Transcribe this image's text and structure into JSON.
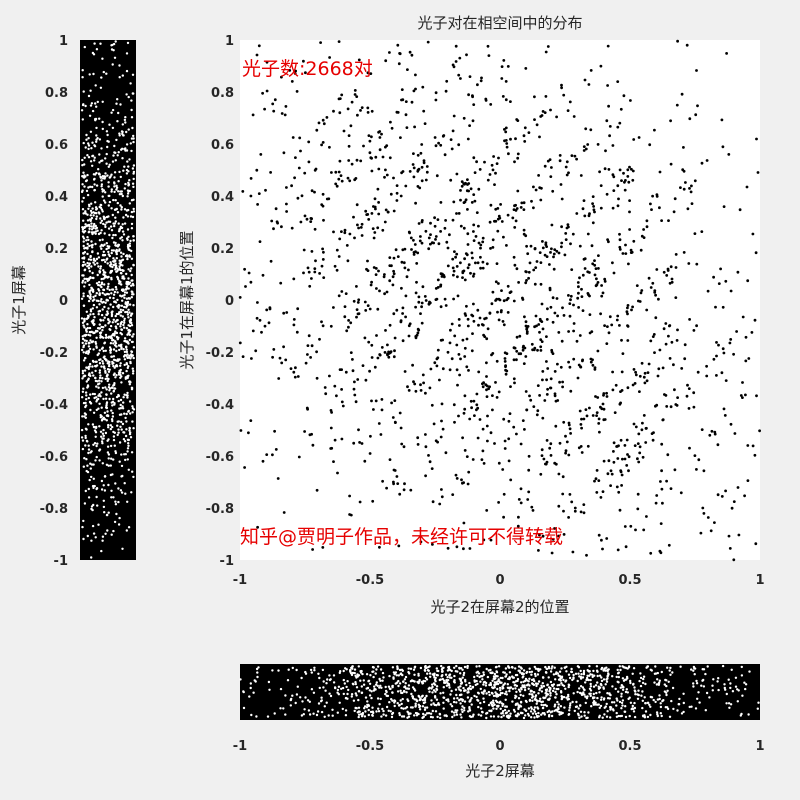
{
  "chart_data": [
    {
      "type": "scatter",
      "title": "光子对在相空间中的分布",
      "xlabel": "光子2在屏幕2的位置",
      "ylabel": "光子1在屏幕1的位置",
      "xlim": [
        -1,
        1
      ],
      "ylim": [
        -1,
        1
      ],
      "xticks": [
        "-1",
        "-0.5",
        "0",
        "0.5",
        "1"
      ],
      "yticks": [
        "1",
        "0.8",
        "0.6",
        "0.4",
        "0.2",
        "0",
        "-0.2",
        "-0.4",
        "-0.6",
        "-0.8",
        "-1"
      ],
      "grid": false,
      "point_color": "#000000",
      "background": "#ffffff",
      "total_pairs": 2668,
      "sample_points_approx": [
        [
          -0.92,
          0.56
        ],
        [
          -0.79,
          0.47
        ],
        [
          -0.69,
          0.99
        ],
        [
          -0.6,
          0.65
        ],
        [
          -0.53,
          0.74
        ],
        [
          -0.45,
          0.55
        ],
        [
          -0.38,
          0.4
        ],
        [
          -0.3,
          0.3
        ],
        [
          -0.2,
          0.2
        ],
        [
          -0.1,
          0.1
        ],
        [
          0.0,
          0.0
        ],
        [
          0.1,
          -0.1
        ],
        [
          0.2,
          -0.2
        ],
        [
          0.3,
          -0.3
        ],
        [
          0.4,
          -0.42
        ],
        [
          0.52,
          -0.56
        ],
        [
          0.62,
          -0.86
        ],
        [
          0.72,
          0.98
        ],
        [
          0.88,
          0.56
        ],
        [
          0.87,
          -0.31
        ],
        [
          -0.74,
          -0.42
        ],
        [
          -0.87,
          -0.19
        ],
        [
          -0.52,
          -0.62
        ],
        [
          -0.26,
          -0.94
        ],
        [
          0.78,
          -0.8
        ]
      ]
    },
    {
      "type": "scatter",
      "title": "",
      "xlabel": "",
      "ylabel": "光子1屏幕",
      "ylim": [
        -1,
        1
      ],
      "yticks": [
        "1",
        "0.8",
        "0.6",
        "0.4",
        "0.2",
        "0",
        "-0.2",
        "-0.4",
        "-0.6",
        "-0.8",
        "-1"
      ],
      "grid": false,
      "point_color": "#ffffff",
      "background": "#000000",
      "density_peak_at": 0.0
    },
    {
      "type": "scatter",
      "title": "",
      "xlabel": "光子2屏幕",
      "ylabel": "",
      "xlim": [
        -1,
        1
      ],
      "xticks": [
        "-1",
        "-0.5",
        "0",
        "0.5",
        "1"
      ],
      "grid": false,
      "point_color": "#ffffff",
      "background": "#000000",
      "density_peak_at": 0.0
    }
  ],
  "annotations": {
    "count_text": "光子数:2668对",
    "watermark": "知乎@贾明子作品，未经许可不得转载",
    "color": "#e60000"
  }
}
